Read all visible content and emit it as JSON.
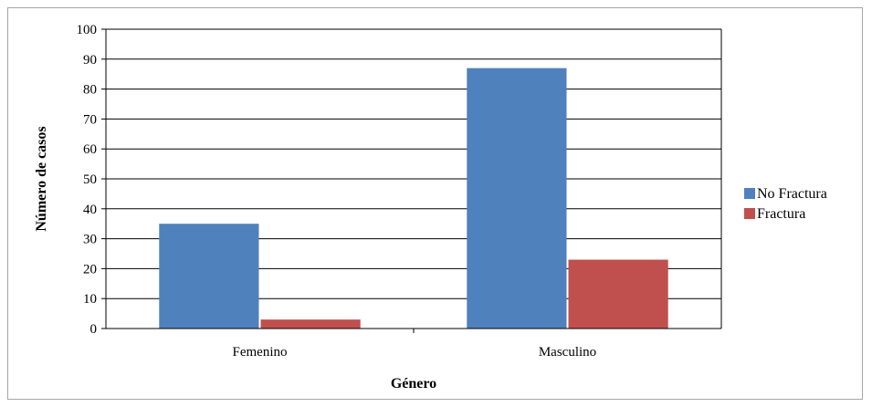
{
  "chart_data": {
    "type": "bar",
    "title": "",
    "xlabel": "Género",
    "ylabel": "Número de casos",
    "categories": [
      "Femenino",
      "Masculino"
    ],
    "series": [
      {
        "name": "No Fractura",
        "values": [
          35,
          87
        ],
        "color": "#4f81bd"
      },
      {
        "name": "Fractura",
        "values": [
          3,
          23
        ],
        "color": "#c0504d"
      }
    ],
    "ylim": [
      0,
      100
    ],
    "yticks": [
      "0",
      "10",
      "20",
      "30",
      "40",
      "50",
      "60",
      "70",
      "80",
      "90",
      "100"
    ],
    "grid": true,
    "legend_position": "right"
  }
}
